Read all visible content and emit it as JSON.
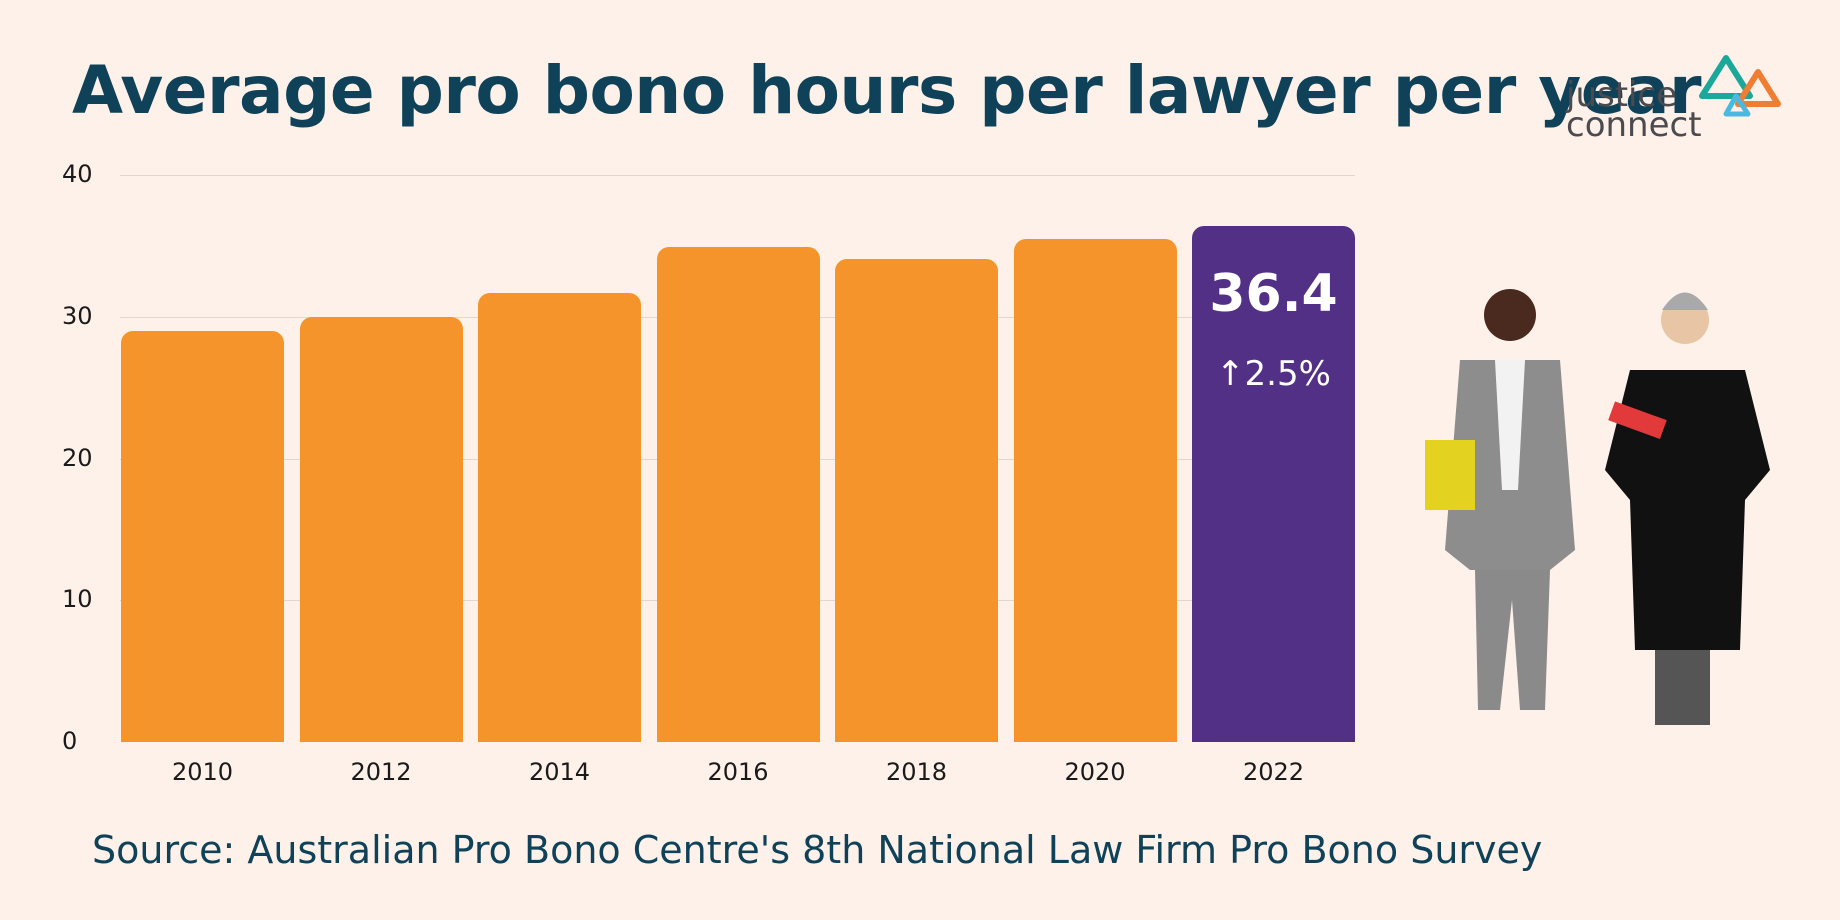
{
  "header": {
    "title": "Average pro bono hours per lawyer per year"
  },
  "logo": {
    "line1": "justice",
    "line2": "connect",
    "colors": [
      "#1aa89a",
      "#ef7d32",
      "#4ab9e0"
    ]
  },
  "colors": {
    "bar": "#f5942a",
    "highlight": "#523086",
    "title": "#0f4258",
    "background": "#fdf1ea"
  },
  "highlight": {
    "value": "36.4",
    "change": "↑2.5%"
  },
  "source": "Source: Australian Pro Bono Centre's 8th National Law Firm Pro Bono Survey",
  "chart_data": {
    "type": "bar",
    "title": "Average pro bono hours per lawyer per year",
    "xlabel": "",
    "ylabel": "",
    "categories": [
      "2010",
      "2012",
      "2014",
      "2016",
      "2018",
      "2020",
      "2022"
    ],
    "values": [
      29.0,
      30.0,
      31.7,
      34.9,
      34.1,
      35.5,
      36.4
    ],
    "value_notes": "Only 2022 (36.4) is labelled on the chart. 2010–2020 are estimated from bar heights against gridlines, approx. ±0.5.",
    "highlight_index": 6,
    "highlight_label": "36.4",
    "highlight_change": "↑2.5%",
    "yticks": [
      0,
      10,
      20,
      30,
      40
    ],
    "ylim": [
      0,
      40
    ],
    "grid": true,
    "legend": null
  }
}
